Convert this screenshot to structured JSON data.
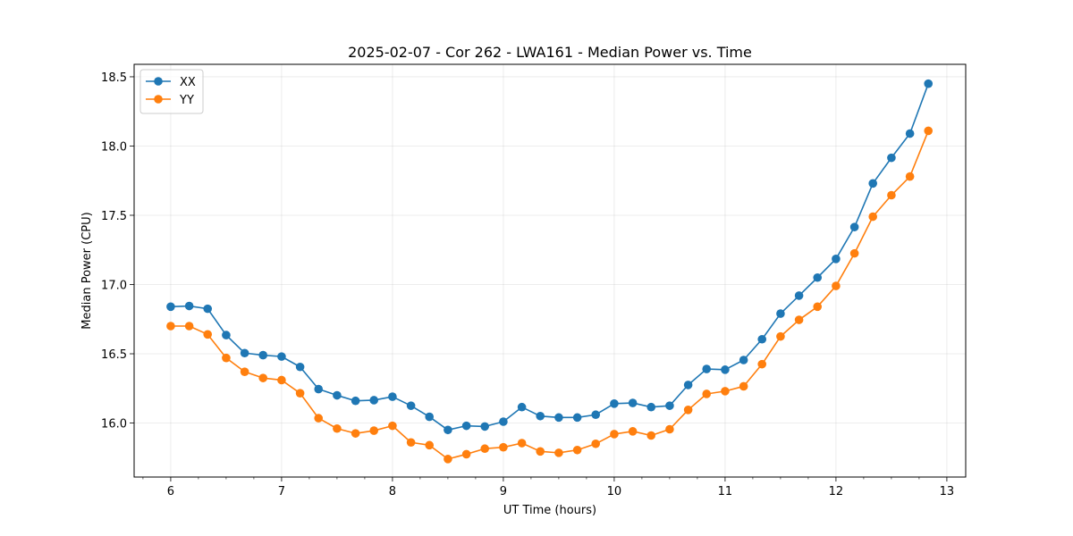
{
  "chart_data": {
    "type": "line",
    "title": "2025-02-07 - Cor 262 - LWA161 - Median Power vs. Time",
    "xlabel": "UT Time (hours)",
    "ylabel": "Median Power (CPU)",
    "xlim": [
      5.67,
      13.17
    ],
    "ylim": [
      15.61,
      18.59
    ],
    "xticks": [
      6,
      7,
      8,
      9,
      10,
      11,
      12,
      13
    ],
    "xtick_labels": [
      "6",
      "7",
      "8",
      "9",
      "10",
      "11",
      "12",
      "13"
    ],
    "yticks": [
      16.0,
      16.5,
      17.0,
      17.5,
      18.0,
      18.5
    ],
    "ytick_labels": [
      "16.0",
      "16.5",
      "17.0",
      "17.5",
      "18.0",
      "18.5"
    ],
    "grid": true,
    "legend_position": "top-left",
    "x": [
      6.0,
      6.167,
      6.333,
      6.5,
      6.667,
      6.833,
      7.0,
      7.167,
      7.333,
      7.5,
      7.667,
      7.833,
      8.0,
      8.167,
      8.333,
      8.5,
      8.667,
      8.833,
      9.0,
      9.167,
      9.333,
      9.5,
      9.667,
      9.833,
      10.0,
      10.167,
      10.333,
      10.5,
      10.667,
      10.833,
      11.0,
      11.167,
      11.333,
      11.5,
      11.667,
      11.833,
      12.0,
      12.167,
      12.333,
      12.5,
      12.667,
      12.833
    ],
    "series": [
      {
        "name": "XX",
        "color": "#1f77b4",
        "values": [
          16.84,
          16.845,
          16.825,
          16.635,
          16.505,
          16.49,
          16.48,
          16.405,
          16.245,
          16.2,
          16.16,
          16.165,
          16.19,
          16.125,
          16.045,
          15.95,
          15.98,
          15.975,
          16.01,
          16.115,
          16.05,
          16.04,
          16.04,
          16.06,
          16.14,
          16.145,
          16.115,
          16.125,
          16.275,
          16.39,
          16.385,
          16.455,
          16.605,
          16.79,
          16.92,
          17.05,
          17.185,
          17.415,
          17.73,
          17.915,
          18.09,
          18.45
        ]
      },
      {
        "name": "YY",
        "color": "#ff7f0e",
        "values": [
          16.7,
          16.7,
          16.64,
          16.47,
          16.37,
          16.325,
          16.31,
          16.215,
          16.035,
          15.96,
          15.925,
          15.945,
          15.98,
          15.86,
          15.84,
          15.74,
          15.775,
          15.815,
          15.825,
          15.855,
          15.795,
          15.785,
          15.805,
          15.85,
          15.92,
          15.94,
          15.91,
          15.955,
          16.095,
          16.21,
          16.23,
          16.265,
          16.425,
          16.625,
          16.745,
          16.84,
          16.99,
          17.225,
          17.49,
          17.645,
          17.78,
          18.11
        ]
      }
    ]
  }
}
